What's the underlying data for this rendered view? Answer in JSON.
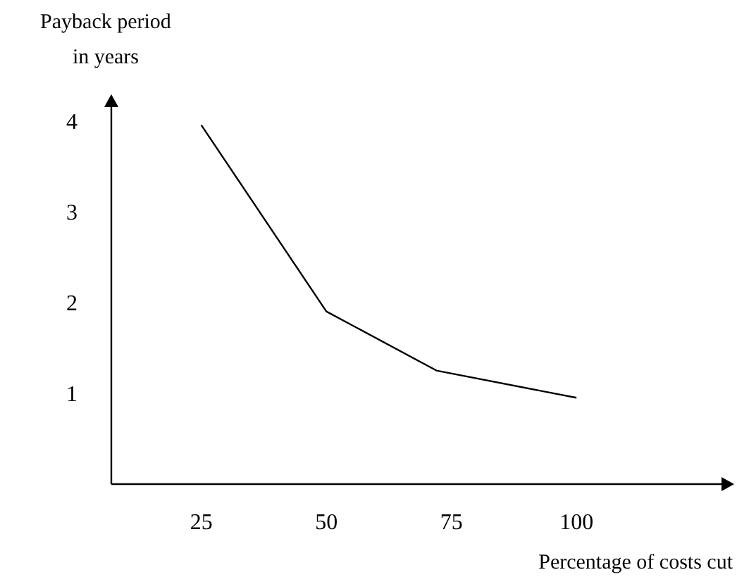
{
  "chart_data": {
    "type": "line",
    "xlabel": "Percentage of costs cut",
    "ylabel": "Payback period\nin years",
    "x": [
      25,
      50,
      72,
      100
    ],
    "series": [
      {
        "color": "#000000",
        "values": [
          3.95,
          1.9,
          1.25,
          0.95
        ]
      }
    ],
    "xlim": [
      7,
      129
    ],
    "xticks": [
      25,
      50,
      75,
      100
    ],
    "ylim": [
      0,
      4.15
    ],
    "yticks": [
      1,
      2,
      3,
      4
    ],
    "grid": false,
    "marker": "none",
    "line_style": "solid"
  }
}
